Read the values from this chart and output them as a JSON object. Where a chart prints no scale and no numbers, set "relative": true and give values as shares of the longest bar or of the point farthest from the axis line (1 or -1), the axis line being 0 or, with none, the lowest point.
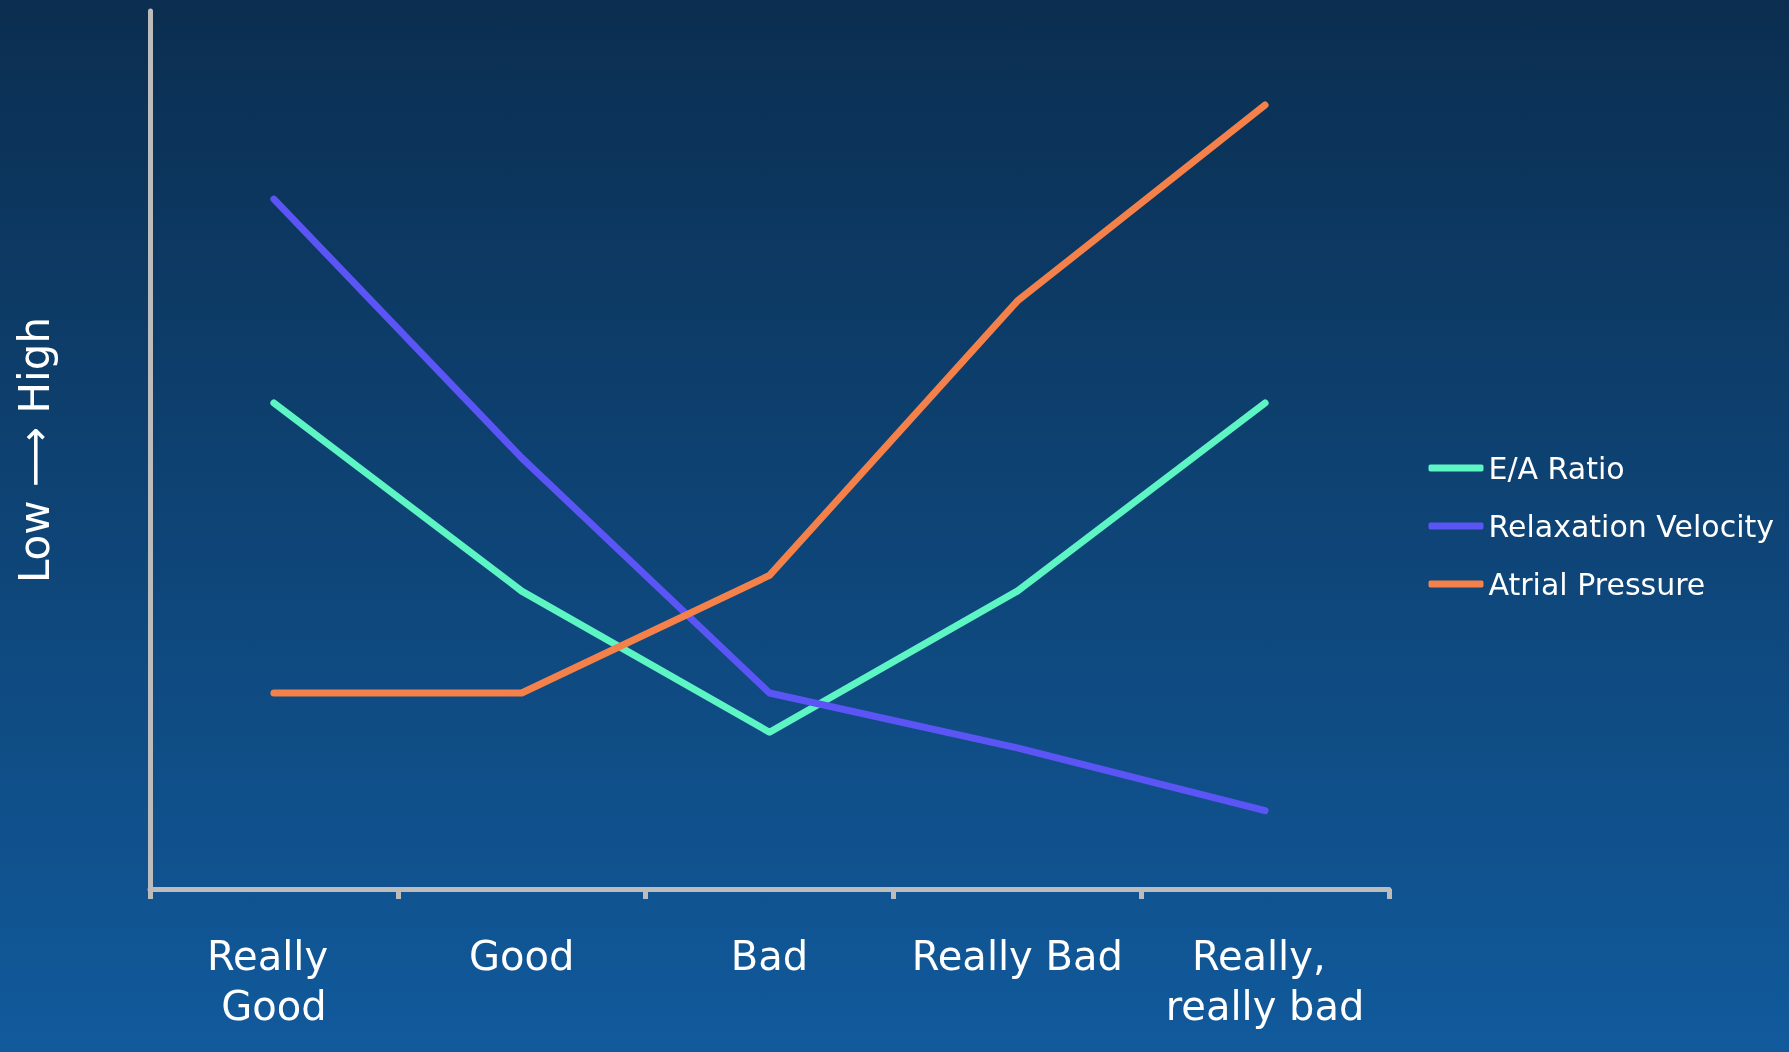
{
  "chart_data": {
    "type": "line",
    "relative": true,
    "ylabel": "Low ⟶ High",
    "categories": [
      "Really Good",
      "Good",
      "Bad",
      "Really Bad",
      "Really, really bad"
    ],
    "series": [
      {
        "name": "E/A Ratio",
        "color": "#5ef5c4",
        "values": [
          0.62,
          0.38,
          0.2,
          0.38,
          0.62
        ]
      },
      {
        "name": "Relaxation Velocity",
        "color": "#5b55f5",
        "values": [
          0.88,
          0.55,
          0.25,
          0.18,
          0.1
        ]
      },
      {
        "name": "Atrial Pressure",
        "color": "#f5814a",
        "values": [
          0.25,
          0.25,
          0.4,
          0.75,
          1.0
        ]
      }
    ],
    "legend": "right",
    "grid": false,
    "marker": "none",
    "line_style": "solid"
  }
}
